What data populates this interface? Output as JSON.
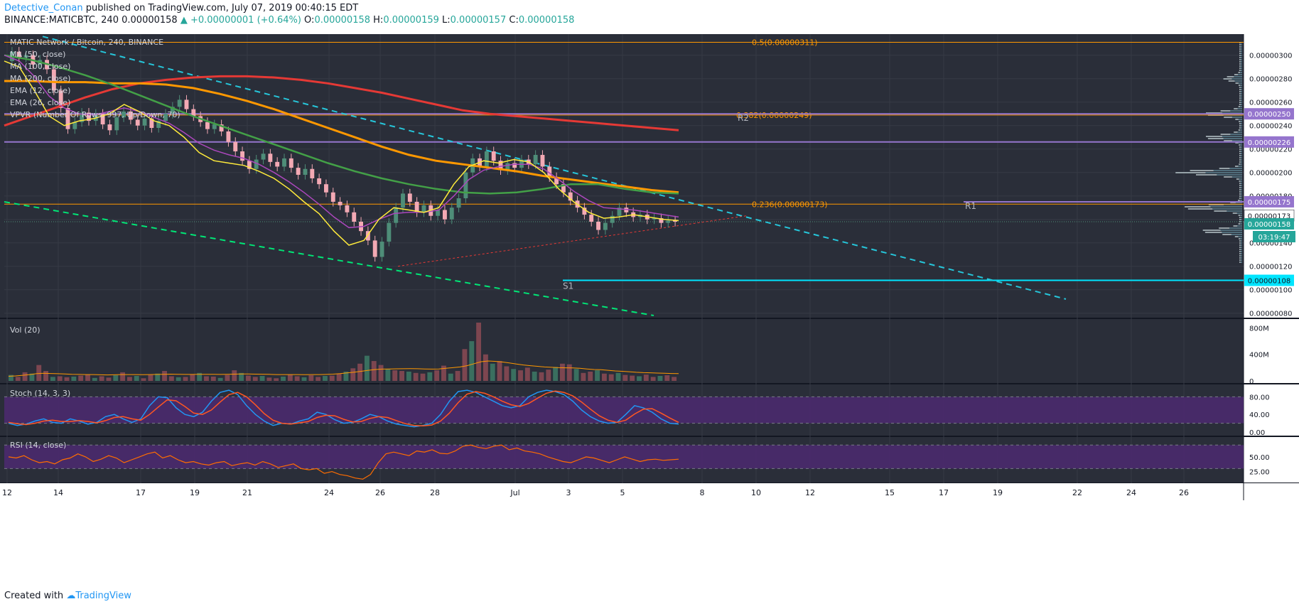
{
  "header": {
    "author": "Detective_Conan",
    "published": "published on TradingView.com, July 07, 2019 00:40:15 EDT",
    "symbol_line": "BINANCE:MATICBTC, 240",
    "last": "0.00000158",
    "change": "▲ +0.00000001 (+0.64%)",
    "o_label": "O:",
    "o_value": "0.00000158",
    "h_label": "H:",
    "h_value": "0.00000159",
    "l_label": "L:",
    "l_value": "0.00000157",
    "c_label": "C:",
    "c_value": "0.00000158"
  },
  "footer": {
    "created_with": "Created with",
    "brand": "TradingView"
  },
  "colors": {
    "background": "#2a2e39",
    "grid": "#363a45",
    "up": "#4e8d78",
    "down": "#f3a9b4",
    "ma50": "#43a047",
    "ma100": "#ff9800",
    "ma200": "#e53935",
    "ema12": "#ffeb3b",
    "ema26": "#ab47bc",
    "channel_top": "#26c6da",
    "channel_bottom": "#00e676",
    "support": "#00e5ff",
    "fib": "#ff9800",
    "level_line": "#9575cd",
    "stoch_k": "#2196f3",
    "stoch_d": "#ff5722",
    "rsi": "#ff6d00",
    "osc_band": "#4a2a6e"
  },
  "chart_data": [
    {
      "type": "candlestick",
      "title": "MATIC Network / Bitcoin, 240, BINANCE",
      "indicators": [
        "MA (50, close)",
        "MA (100, close)",
        "MA (200, close)",
        "EMA (12, close)",
        "EMA (26, close)",
        "VPVR (Number Of Rows, 997, Up/Down, 70)"
      ],
      "x_tick_labels": [
        "12",
        "14",
        "17",
        "19",
        "21",
        "24",
        "26",
        "28",
        "Jul",
        "3",
        "5",
        "8",
        "10",
        "12",
        "15",
        "17",
        "19",
        "22",
        "24",
        "26"
      ],
      "y_tick_labels": [
        "0.00000300",
        "0.00000280",
        "0.00000260",
        "0.00000240",
        "0.00000220",
        "0.00000200",
        "0.00000180",
        "0.00000160",
        "0.00000140",
        "0.00000120",
        "0.00000100",
        "0.00000080"
      ],
      "ylim": [
        7.8e-07,
        3.18e-06
      ],
      "price_tags": [
        {
          "value": "0.00000250",
          "style": "purple"
        },
        {
          "value": "0.00000226",
          "style": "purple"
        },
        {
          "value": "0.00000175",
          "style": "purple"
        },
        {
          "value": "0.00000173",
          "style": "white"
        },
        {
          "value": "0.00000158",
          "style": "green"
        },
        {
          "value": "03:19:47",
          "style": "green"
        },
        {
          "value": "0.00000108",
          "style": "cyan"
        }
      ],
      "fib_levels": [
        {
          "label": "0.5(0.00000311)",
          "price": 3.11e-06
        },
        {
          "label": "0.382(0.00000249)",
          "price": 2.49e-06
        },
        {
          "label": "0.236(0.00000173)",
          "price": 1.73e-06
        }
      ],
      "levels": [
        {
          "label": "R2",
          "price": 2.5e-06
        },
        {
          "label": "",
          "price": 2.26e-06
        },
        {
          "label": "R1",
          "price": 1.75e-06
        },
        {
          "label": "S1",
          "price": 1.08e-06
        }
      ],
      "candles": [
        [
          2.95e-06,
          3.03e-06
        ],
        [
          3.03e-06,
          2.98e-06
        ],
        [
          2.98e-06,
          3e-06
        ],
        [
          3e-06,
          2.92e-06
        ],
        [
          2.92e-06,
          2.96e-06
        ],
        [
          2.96e-06,
          2.88e-06
        ],
        [
          2.88e-06,
          2.7e-06
        ],
        [
          2.7e-06,
          2.55e-06
        ],
        [
          2.55e-06,
          2.37e-06
        ],
        [
          2.37e-06,
          2.43e-06
        ],
        [
          2.43e-06,
          2.51e-06
        ],
        [
          2.51e-06,
          2.44e-06
        ],
        [
          2.44e-06,
          2.5e-06
        ],
        [
          2.5e-06,
          2.41e-06
        ],
        [
          2.41e-06,
          2.36e-06
        ],
        [
          2.36e-06,
          2.47e-06
        ],
        [
          2.47e-06,
          2.52e-06
        ],
        [
          2.52e-06,
          2.45e-06
        ],
        [
          2.45e-06,
          2.4e-06
        ],
        [
          2.4e-06,
          2.46e-06
        ],
        [
          2.46e-06,
          2.38e-06
        ],
        [
          2.38e-06,
          2.44e-06
        ],
        [
          2.44e-06,
          2.5e-06
        ],
        [
          2.5e-06,
          2.56e-06
        ],
        [
          2.56e-06,
          2.62e-06
        ],
        [
          2.62e-06,
          2.54e-06
        ],
        [
          2.54e-06,
          2.48e-06
        ],
        [
          2.48e-06,
          2.43e-06
        ],
        [
          2.43e-06,
          2.37e-06
        ],
        [
          2.37e-06,
          2.41e-06
        ],
        [
          2.41e-06,
          2.35e-06
        ],
        [
          2.35e-06,
          2.26e-06
        ],
        [
          2.26e-06,
          2.18e-06
        ],
        [
          2.18e-06,
          2.1e-06
        ],
        [
          2.1e-06,
          2.03e-06
        ],
        [
          2.03e-06,
          2.11e-06
        ],
        [
          2.11e-06,
          2.16e-06
        ],
        [
          2.16e-06,
          2.09e-06
        ],
        [
          2.09e-06,
          2.05e-06
        ],
        [
          2.05e-06,
          2.12e-06
        ],
        [
          2.12e-06,
          2.04e-06
        ],
        [
          2.04e-06,
          1.98e-06
        ],
        [
          1.98e-06,
          2.03e-06
        ],
        [
          2.03e-06,
          1.95e-06
        ],
        [
          1.95e-06,
          1.9e-06
        ],
        [
          1.9e-06,
          1.83e-06
        ],
        [
          1.83e-06,
          1.75e-06
        ],
        [
          1.75e-06,
          1.72e-06
        ],
        [
          1.72e-06,
          1.66e-06
        ],
        [
          1.66e-06,
          1.58e-06
        ],
        [
          1.58e-06,
          1.5e-06
        ],
        [
          1.5e-06,
          1.42e-06
        ],
        [
          1.42e-06,
          1.28e-06
        ],
        [
          1.28e-06,
          1.41e-06
        ],
        [
          1.41e-06,
          1.57e-06
        ],
        [
          1.57e-06,
          1.7e-06
        ],
        [
          1.7e-06,
          1.82e-06
        ],
        [
          1.82e-06,
          1.75e-06
        ],
        [
          1.75e-06,
          1.66e-06
        ],
        [
          1.66e-06,
          1.72e-06
        ],
        [
          1.72e-06,
          1.63e-06
        ],
        [
          1.63e-06,
          1.68e-06
        ],
        [
          1.68e-06,
          1.6e-06
        ],
        [
          1.6e-06,
          1.7e-06
        ],
        [
          1.7e-06,
          1.78e-06
        ],
        [
          1.78e-06,
          2e-06
        ],
        [
          2e-06,
          2.12e-06
        ],
        [
          2.12e-06,
          2.05e-06
        ],
        [
          2.05e-06,
          2.18e-06
        ],
        [
          2.18e-06,
          2.1e-06
        ],
        [
          2.1e-06,
          2.02e-06
        ],
        [
          2.02e-06,
          2.08e-06
        ],
        [
          2.08e-06,
          2.04e-06
        ],
        [
          2.04e-06,
          2.11e-06
        ],
        [
          2.11e-06,
          2.07e-06
        ],
        [
          2.07e-06,
          2.15e-06
        ],
        [
          2.15e-06,
          2.05e-06
        ],
        [
          2.05e-06,
          1.96e-06
        ],
        [
          1.96e-06,
          1.9e-06
        ],
        [
          1.9e-06,
          1.83e-06
        ],
        [
          1.83e-06,
          1.76e-06
        ],
        [
          1.76e-06,
          1.7e-06
        ],
        [
          1.7e-06,
          1.64e-06
        ],
        [
          1.64e-06,
          1.58e-06
        ],
        [
          1.58e-06,
          1.51e-06
        ],
        [
          1.51e-06,
          1.57e-06
        ],
        [
          1.57e-06,
          1.63e-06
        ],
        [
          1.63e-06,
          1.7e-06
        ],
        [
          1.7e-06,
          1.66e-06
        ],
        [
          1.66e-06,
          1.62e-06
        ],
        [
          1.62e-06,
          1.64e-06
        ],
        [
          1.64e-06,
          1.6e-06
        ],
        [
          1.6e-06,
          1.61e-06
        ],
        [
          1.61e-06,
          1.57e-06
        ],
        [
          1.57e-06,
          1.59e-06
        ],
        [
          1.59e-06,
          1.58e-06
        ]
      ],
      "ma50": [
        3e-06,
        2.96e-06,
        2.9e-06,
        2.83e-06,
        2.75e-06,
        2.66e-06,
        2.57e-06,
        2.48e-06,
        2.4e-06,
        2.32e-06,
        2.24e-06,
        2.16e-06,
        2.08e-06,
        2.01e-06,
        1.95e-06,
        1.9e-06,
        1.86e-06,
        1.83e-06,
        1.82e-06,
        1.83e-06,
        1.86e-06,
        1.9e-06,
        1.9e-06,
        1.86e-06,
        1.83e-06,
        1.82e-06
      ],
      "ma100": [
        2.78e-06,
        2.78e-06,
        2.77e-06,
        2.77e-06,
        2.76e-06,
        2.76e-06,
        2.75e-06,
        2.72e-06,
        2.67e-06,
        2.61e-06,
        2.54e-06,
        2.46e-06,
        2.38e-06,
        2.3e-06,
        2.22e-06,
        2.15e-06,
        2.1e-06,
        2.07e-06,
        2.04e-06,
        2.01e-06,
        1.97e-06,
        1.94e-06,
        1.91e-06,
        1.88e-06,
        1.85e-06,
        1.83e-06
      ],
      "ma200": [
        2.4e-06,
        2.48e-06,
        2.56e-06,
        2.64e-06,
        2.71e-06,
        2.76e-06,
        2.79e-06,
        2.81e-06,
        2.82e-06,
        2.82e-06,
        2.81e-06,
        2.79e-06,
        2.76e-06,
        2.72e-06,
        2.68e-06,
        2.63e-06,
        2.58e-06,
        2.53e-06,
        2.5e-06,
        2.48e-06,
        2.46e-06,
        2.44e-06,
        2.42e-06,
        2.4e-06,
        2.38e-06,
        2.36e-06
      ],
      "ema12": [
        2.95e-06,
        2.9e-06,
        2.7e-06,
        2.48e-06,
        2.4e-06,
        2.44e-06,
        2.46e-06,
        2.5e-06,
        2.58e-06,
        2.52e-06,
        2.44e-06,
        2.4e-06,
        2.3e-06,
        2.17e-06,
        2.1e-06,
        2.08e-06,
        2.06e-06,
        2.01e-06,
        1.95e-06,
        1.86e-06,
        1.75e-06,
        1.65e-06,
        1.5e-06,
        1.38e-06,
        1.42e-06,
        1.6e-06,
        1.7e-06,
        1.68e-06,
        1.66e-06,
        1.7e-06,
        1.9e-06,
        2.05e-06,
        2.1e-06,
        2.08e-06,
        2.11e-06,
        2.09e-06,
        2e-06,
        1.86e-06,
        1.75e-06,
        1.66e-06,
        1.61e-06,
        1.62e-06,
        1.64e-06,
        1.62e-06,
        1.6e-06,
        1.59e-06
      ],
      "ema26": [
        3e-06,
        2.95e-06,
        2.82e-06,
        2.65e-06,
        2.55e-06,
        2.5e-06,
        2.49e-06,
        2.52e-06,
        2.55e-06,
        2.52e-06,
        2.47e-06,
        2.42e-06,
        2.34e-06,
        2.25e-06,
        2.19e-06,
        2.15e-06,
        2.12e-06,
        2.07e-06,
        2e-06,
        1.92e-06,
        1.83e-06,
        1.73e-06,
        1.62e-06,
        1.53e-06,
        1.54e-06,
        1.6e-06,
        1.65e-06,
        1.66e-06,
        1.66e-06,
        1.68e-06,
        1.8e-06,
        1.94e-06,
        2.02e-06,
        2.05e-06,
        2.07e-06,
        2.07e-06,
        2.03e-06,
        1.94e-06,
        1.84e-06,
        1.76e-06,
        1.7e-06,
        1.69e-06,
        1.68e-06,
        1.66e-06,
        1.64e-06,
        1.62e-06
      ],
      "vpvr_peaks": [
        {
          "price": 2.5e-06,
          "weight": 0.55
        },
        {
          "price": 2.3e-06,
          "weight": 0.55
        },
        {
          "price": 2e-06,
          "weight": 1.0
        },
        {
          "price": 1.7e-06,
          "weight": 0.9
        },
        {
          "price": 1.5e-06,
          "weight": 0.6
        },
        {
          "price": 2.8e-06,
          "weight": 0.25
        }
      ]
    },
    {
      "type": "bar",
      "title": "Vol (20)",
      "y_tick_labels": [
        "800M",
        "400M",
        "0"
      ],
      "ylim": [
        0,
        880
      ],
      "values": [
        90,
        60,
        130,
        110,
        240,
        150,
        60,
        70,
        55,
        65,
        80,
        95,
        45,
        70,
        50,
        85,
        130,
        60,
        75,
        40,
        90,
        110,
        150,
        70,
        55,
        60,
        100,
        120,
        70,
        65,
        45,
        90,
        160,
        120,
        80,
        60,
        75,
        50,
        40,
        65,
        95,
        70,
        55,
        85,
        60,
        75,
        80,
        110,
        140,
        190,
        260,
        380,
        300,
        240,
        180,
        160,
        150,
        140,
        120,
        110,
        130,
        160,
        230,
        110,
        150,
        480,
        600,
        880,
        400,
        260,
        300,
        220,
        180,
        160,
        200,
        140,
        130,
        170,
        210,
        260,
        250,
        180,
        120,
        140,
        160,
        110,
        100,
        120,
        90,
        80,
        70,
        95,
        60,
        75,
        85,
        60
      ],
      "ma20": [
        70,
        75,
        85,
        95,
        110,
        115,
        112,
        108,
        105,
        100,
        98,
        96,
        95,
        92,
        90,
        92,
        95,
        95,
        96,
        94,
        95,
        98,
        100,
        102,
        100,
        98,
        98,
        99,
        100,
        99,
        98,
        99,
        102,
        105,
        104,
        102,
        101,
        99,
        96,
        95,
        95,
        95,
        94,
        95,
        96,
        98,
        102,
        110,
        120,
        132,
        145,
        160,
        172,
        178,
        180,
        182,
        184,
        185,
        184,
        180,
        178,
        180,
        190,
        200,
        210,
        230,
        260,
        290,
        300,
        295,
        285,
        270,
        255,
        240,
        230,
        220,
        210,
        205,
        200,
        198,
        195,
        190,
        180,
        172,
        168,
        160,
        150,
        145,
        138,
        130,
        125,
        122,
        118,
        115,
        112,
        110
      ]
    },
    {
      "type": "line",
      "title": "Stoch (14, 3, 3)",
      "y_tick_labels": [
        "80.00",
        "40.00",
        "0.00"
      ],
      "ylim": [
        0,
        100
      ],
      "k": [
        20,
        15,
        18,
        25,
        30,
        22,
        20,
        30,
        25,
        18,
        22,
        35,
        40,
        30,
        22,
        30,
        60,
        80,
        78,
        55,
        40,
        35,
        45,
        70,
        90,
        95,
        85,
        60,
        40,
        25,
        15,
        20,
        18,
        25,
        30,
        45,
        40,
        28,
        20,
        22,
        30,
        40,
        35,
        25,
        18,
        15,
        12,
        15,
        20,
        40,
        70,
        92,
        95,
        90,
        80,
        70,
        60,
        55,
        60,
        80,
        90,
        95,
        92,
        85,
        70,
        50,
        35,
        25,
        20,
        22,
        40,
        60,
        55,
        45,
        30,
        20,
        18
      ],
      "d": [
        22,
        19,
        17,
        20,
        25,
        27,
        24,
        24,
        26,
        24,
        21,
        26,
        33,
        35,
        30,
        27,
        40,
        57,
        73,
        71,
        58,
        43,
        40,
        50,
        68,
        85,
        90,
        80,
        62,
        42,
        27,
        20,
        18,
        21,
        24,
        33,
        38,
        37,
        29,
        23,
        24,
        31,
        35,
        33,
        26,
        19,
        15,
        14,
        16,
        25,
        43,
        67,
        86,
        92,
        88,
        80,
        70,
        62,
        58,
        65,
        77,
        88,
        93,
        90,
        82,
        68,
        52,
        37,
        27,
        22,
        27,
        41,
        52,
        53,
        43,
        32,
        22
      ]
    },
    {
      "type": "line",
      "title": "RSI (14, close)",
      "y_tick_labels": [
        "50.00",
        "25.00"
      ],
      "ylim": [
        10,
        80
      ],
      "values": [
        50,
        48,
        52,
        45,
        40,
        42,
        38,
        45,
        48,
        55,
        50,
        42,
        46,
        52,
        48,
        40,
        45,
        50,
        55,
        58,
        48,
        52,
        45,
        40,
        42,
        38,
        36,
        40,
        42,
        35,
        38,
        40,
        36,
        42,
        38,
        32,
        35,
        38,
        30,
        28,
        30,
        22,
        25,
        20,
        18,
        14,
        12,
        20,
        40,
        55,
        58,
        55,
        52,
        60,
        58,
        62,
        56,
        55,
        60,
        68,
        70,
        66,
        64,
        68,
        70,
        62,
        65,
        60,
        58,
        55,
        50,
        46,
        42,
        40,
        45,
        50,
        48,
        44,
        40,
        45,
        50,
        46,
        42,
        45,
        46,
        44,
        45,
        46
      ]
    }
  ]
}
